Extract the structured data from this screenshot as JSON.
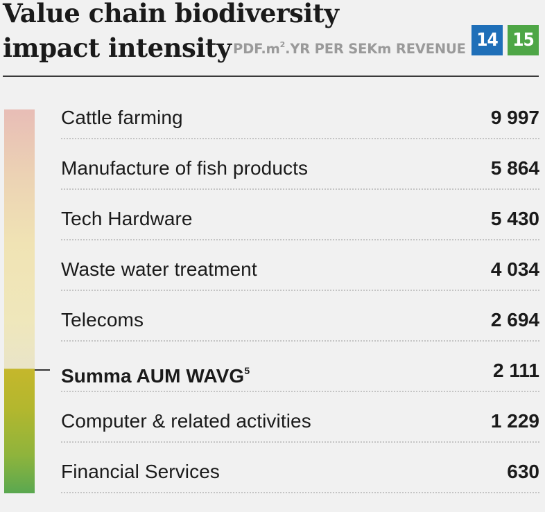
{
  "header": {
    "title_line1": "Value chain biodiversity",
    "title_line2": "impact intensity",
    "unit_prefix": "PDF.m",
    "unit_sup": "2",
    "unit_suffix": ".YR PER SEKm REVENUE",
    "badges": [
      {
        "label": "14",
        "color": "#1f6fb8"
      },
      {
        "label": "15",
        "color": "#4ea646"
      }
    ]
  },
  "chart_data": {
    "type": "table",
    "title": "Value chain biodiversity impact intensity",
    "unit": "PDF.m².YR PER SEKm REVENUE",
    "rows": [
      {
        "label": "Cattle farming",
        "display": "9 997",
        "value": 9997
      },
      {
        "label": "Manufacture of fish products",
        "display": "5 864",
        "value": 5864
      },
      {
        "label": "Tech Hardware",
        "display": "5 430",
        "value": 5430
      },
      {
        "label": "Waste water treatment",
        "display": "4 034",
        "value": 4034
      },
      {
        "label": "Telecoms",
        "display": "2 694",
        "value": 2694
      },
      {
        "label": "Summa AUM WAVG",
        "footnote": "5",
        "display": "2 111",
        "value": 2111,
        "highlight": true
      },
      {
        "label": "Computer & related activities",
        "display": "1 229",
        "value": 1229
      },
      {
        "label": "Financial Services",
        "display": "630",
        "value": 630
      }
    ]
  }
}
